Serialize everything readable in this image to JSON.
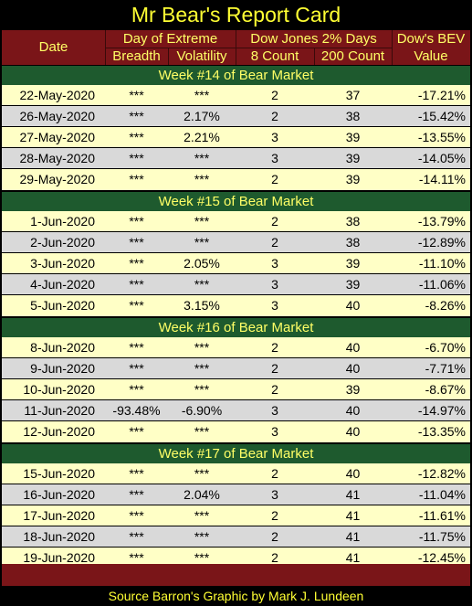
{
  "title": "Mr Bear's Report Card",
  "header": {
    "date": "Date",
    "day_of_extreme": "Day of Extreme",
    "dow_jones_2pct": "Dow Jones 2% Days",
    "dow_bev": "Dow's BEV",
    "breadth": "Breadth",
    "volatility": "Volatility",
    "count8": "8 Count",
    "count200": "200 Count",
    "value": "Value"
  },
  "weeks": [
    {
      "label": "Week #14 of Bear Market",
      "rows": [
        {
          "date": "22-May-2020",
          "breadth": "***",
          "volatility": "***",
          "c8": "2",
          "c200": "37",
          "bev": "-17.21%"
        },
        {
          "date": "26-May-2020",
          "breadth": "***",
          "volatility": "2.17%",
          "c8": "2",
          "c200": "38",
          "bev": "-15.42%"
        },
        {
          "date": "27-May-2020",
          "breadth": "***",
          "volatility": "2.21%",
          "c8": "3",
          "c200": "39",
          "bev": "-13.55%"
        },
        {
          "date": "28-May-2020",
          "breadth": "***",
          "volatility": "***",
          "c8": "3",
          "c200": "39",
          "bev": "-14.05%"
        },
        {
          "date": "29-May-2020",
          "breadth": "***",
          "volatility": "***",
          "c8": "2",
          "c200": "39",
          "bev": "-14.11%"
        }
      ]
    },
    {
      "label": "Week #15 of Bear Market",
      "rows": [
        {
          "date": "1-Jun-2020",
          "breadth": "***",
          "volatility": "***",
          "c8": "2",
          "c200": "38",
          "bev": "-13.79%"
        },
        {
          "date": "2-Jun-2020",
          "breadth": "***",
          "volatility": "***",
          "c8": "2",
          "c200": "38",
          "bev": "-12.89%"
        },
        {
          "date": "3-Jun-2020",
          "breadth": "***",
          "volatility": "2.05%",
          "c8": "3",
          "c200": "39",
          "bev": "-11.10%"
        },
        {
          "date": "4-Jun-2020",
          "breadth": "***",
          "volatility": "***",
          "c8": "3",
          "c200": "39",
          "bev": "-11.06%"
        },
        {
          "date": "5-Jun-2020",
          "breadth": "***",
          "volatility": "3.15%",
          "c8": "3",
          "c200": "40",
          "bev": "-8.26%"
        }
      ]
    },
    {
      "label": "Week #16 of Bear Market",
      "rows": [
        {
          "date": "8-Jun-2020",
          "breadth": "***",
          "volatility": "***",
          "c8": "2",
          "c200": "40",
          "bev": "-6.70%"
        },
        {
          "date": "9-Jun-2020",
          "breadth": "***",
          "volatility": "***",
          "c8": "2",
          "c200": "40",
          "bev": "-7.71%"
        },
        {
          "date": "10-Jun-2020",
          "breadth": "***",
          "volatility": "***",
          "c8": "2",
          "c200": "39",
          "bev": "-8.67%"
        },
        {
          "date": "11-Jun-2020",
          "breadth": "-93.48%",
          "volatility": "-6.90%",
          "c8": "3",
          "c200": "40",
          "bev": "-14.97%"
        },
        {
          "date": "12-Jun-2020",
          "breadth": "***",
          "volatility": "***",
          "c8": "3",
          "c200": "40",
          "bev": "-13.35%"
        }
      ]
    },
    {
      "label": "Week #17 of Bear Market",
      "rows": [
        {
          "date": "15-Jun-2020",
          "breadth": "***",
          "volatility": "***",
          "c8": "2",
          "c200": "40",
          "bev": "-12.82%"
        },
        {
          "date": "16-Jun-2020",
          "breadth": "***",
          "volatility": "2.04%",
          "c8": "3",
          "c200": "41",
          "bev": "-11.04%"
        },
        {
          "date": "17-Jun-2020",
          "breadth": "***",
          "volatility": "***",
          "c8": "2",
          "c200": "41",
          "bev": "-11.61%"
        },
        {
          "date": "18-Jun-2020",
          "breadth": "***",
          "volatility": "***",
          "c8": "2",
          "c200": "41",
          "bev": "-11.75%"
        },
        {
          "date": "19-Jun-2020",
          "breadth": "***",
          "volatility": "***",
          "c8": "2",
          "c200": "41",
          "bev": "-12.45%"
        }
      ]
    }
  ],
  "source": "Source Barron's  Graphic by Mark J. Lundeen"
}
